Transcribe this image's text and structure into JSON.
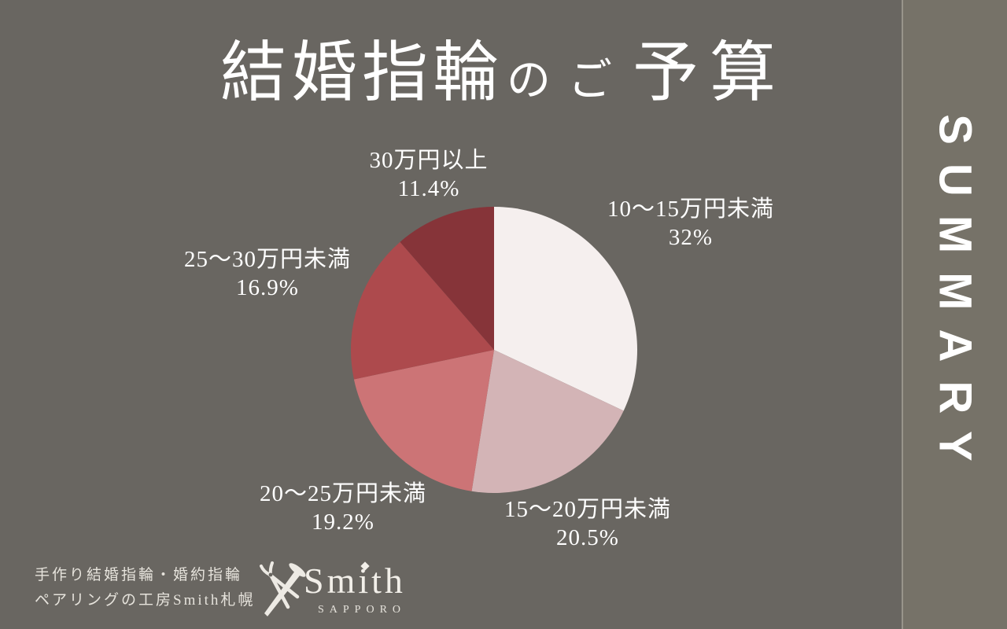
{
  "page": {
    "background": "#696661",
    "sidebar_bg": "#767268",
    "divider_color": "#98948B",
    "text_color": "#FFFFFF",
    "footer_text_color": "#E6E3DC"
  },
  "title": {
    "full": "結婚指輪のご予算",
    "part1": "結婚指輪",
    "part2": "の",
    "part3": "ご",
    "part4": "予算"
  },
  "sidebar": {
    "label": "SUMMARY"
  },
  "chart_data": {
    "type": "pie",
    "title": "結婚指輪のご予算",
    "legend_position": "labels-around-pie",
    "start_angle_deg": -90,
    "direction": "clockwise",
    "slices": [
      {
        "label": "10〜15万円未満",
        "value": 32,
        "pct_label": "32%",
        "color": "#F5EFEE"
      },
      {
        "label": "15〜20万円未満",
        "value": 20.5,
        "pct_label": "20.5%",
        "color": "#D3B4B6"
      },
      {
        "label": "20〜25万円未満",
        "value": 19.2,
        "pct_label": "19.2%",
        "color": "#CC7476"
      },
      {
        "label": "25〜30万円未満",
        "value": 16.9,
        "pct_label": "16.9%",
        "color": "#AD4A4D"
      },
      {
        "label": "30万円以上",
        "value": 11.4,
        "pct_label": "11.4%",
        "color": "#863439"
      }
    ]
  },
  "footer": {
    "line1": "手作り結婚指輪・婚約指輪",
    "line2": "ペアリングの工房Smith札幌"
  },
  "logo": {
    "name": "Smith",
    "subtitle": "SAPPORO"
  }
}
